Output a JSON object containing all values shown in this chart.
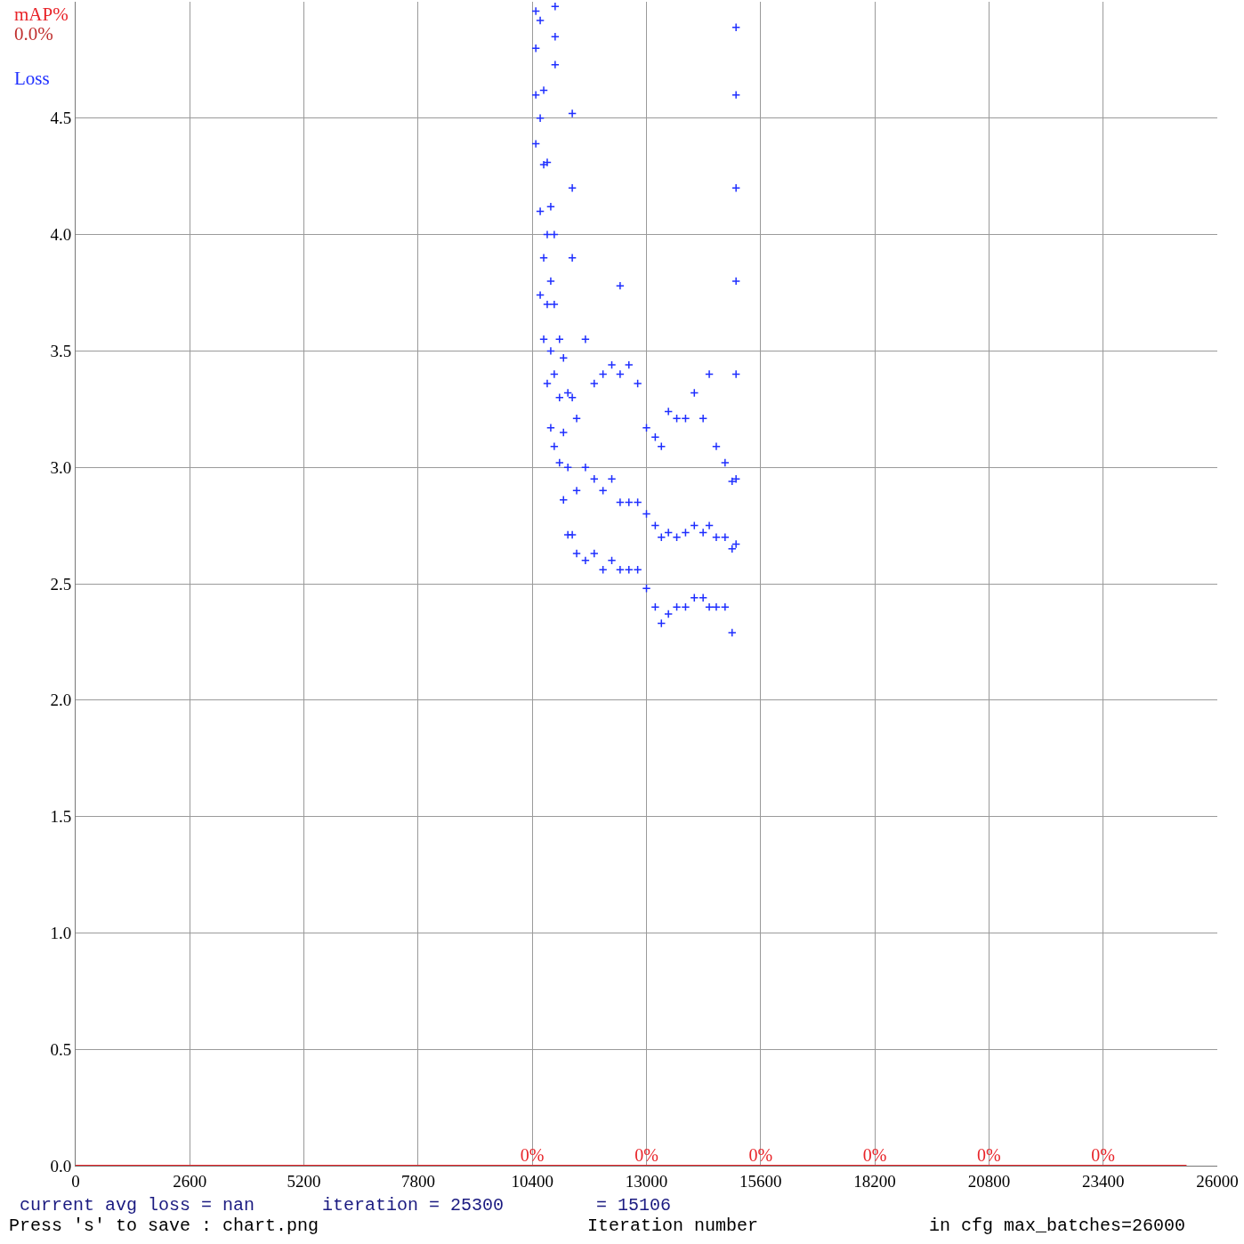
{
  "chart_data": {
    "type": "scatter",
    "xlabel": "Iteration number",
    "xlim": [
      0,
      26000
    ],
    "xticks": [
      0,
      2600,
      5200,
      7800,
      10400,
      13000,
      15600,
      18200,
      20800,
      23400,
      26000
    ],
    "ylim": [
      0,
      5
    ],
    "yticks": [
      {
        "value": 0,
        "label": "0.0"
      },
      {
        "value": 0.5,
        "label": "0.5"
      },
      {
        "value": 1,
        "label": "1.0"
      },
      {
        "value": 1.5,
        "label": "1.5"
      },
      {
        "value": 2,
        "label": "2.0"
      },
      {
        "value": 2.5,
        "label": "2.5"
      },
      {
        "value": 3,
        "label": "3.0"
      },
      {
        "value": 3.5,
        "label": "3.5"
      },
      {
        "value": 4,
        "label": "4.0"
      },
      {
        "value": 4.5,
        "label": "4.5"
      }
    ],
    "grid": true,
    "legend": false,
    "marker": "cross",
    "series": [
      {
        "name": "Loss",
        "color": "#1f2fff",
        "x": [
          10480,
          10480,
          10480,
          10480,
          10580,
          10580,
          10580,
          10580,
          10660,
          10660,
          10660,
          10660,
          10740,
          10740,
          10740,
          10740,
          10820,
          10820,
          10820,
          10820,
          10900,
          10900,
          10900,
          10900,
          10920,
          10920,
          10920,
          11020,
          11020,
          11020,
          11110,
          11110,
          11110,
          11210,
          11210,
          11210,
          11310,
          11310,
          11310,
          11310,
          11310,
          11410,
          11410,
          11410,
          11610,
          11610,
          11610,
          11810,
          11810,
          11810,
          12010,
          12010,
          12010,
          12210,
          12210,
          12210,
          12400,
          12400,
          12400,
          12400,
          12600,
          12600,
          12600,
          12800,
          12800,
          12800,
          13000,
          13000,
          13000,
          13200,
          13200,
          13200,
          13340,
          13340,
          13340,
          13500,
          13500,
          13500,
          13690,
          13690,
          13690,
          13890,
          13890,
          13890,
          14090,
          14090,
          14090,
          14290,
          14290,
          14290,
          14430,
          14430,
          14430,
          14590,
          14590,
          14590,
          14790,
          14790,
          14790,
          14950,
          14950,
          14950,
          15040,
          15040,
          15040,
          15040,
          15040,
          15040,
          15040
        ],
        "values": [
          4.96,
          4.8,
          4.6,
          4.39,
          4.92,
          4.5,
          4.1,
          3.74,
          4.62,
          4.3,
          3.9,
          3.55,
          4.31,
          4.0,
          3.7,
          3.36,
          4.12,
          3.8,
          3.5,
          3.17,
          4.0,
          3.7,
          3.4,
          3.09,
          4.98,
          4.85,
          4.73,
          3.55,
          3.3,
          3.02,
          3.47,
          3.15,
          2.86,
          3.32,
          3.0,
          2.71,
          4.52,
          4.2,
          3.9,
          3.3,
          2.71,
          3.21,
          2.9,
          2.63,
          3.55,
          3.0,
          2.6,
          3.36,
          2.95,
          2.63,
          3.4,
          2.9,
          2.56,
          3.44,
          2.95,
          2.6,
          3.78,
          3.4,
          2.85,
          2.56,
          3.44,
          2.85,
          2.56,
          3.36,
          2.85,
          2.56,
          3.17,
          2.8,
          2.48,
          3.13,
          2.75,
          2.4,
          3.09,
          2.7,
          2.33,
          3.24,
          2.72,
          2.37,
          3.21,
          2.7,
          2.4,
          3.21,
          2.72,
          2.4,
          3.32,
          2.75,
          2.44,
          3.21,
          2.72,
          2.44,
          3.4,
          2.75,
          2.4,
          3.09,
          2.7,
          2.4,
          3.02,
          2.7,
          2.4,
          2.94,
          2.65,
          2.29,
          4.89,
          4.6,
          4.2,
          3.8,
          3.4,
          2.95,
          2.67
        ]
      },
      {
        "name": "mAP%",
        "color": "#e8252a",
        "type": "line",
        "marker": "none",
        "x": [
          0,
          10400,
          13000,
          15600,
          18200,
          20800,
          23400,
          25300
        ],
        "values": [
          0,
          0,
          0,
          0,
          0,
          0,
          0,
          0
        ],
        "value_labels": [
          null,
          "0%",
          "0%",
          "0%",
          "0%",
          "0%",
          "0%",
          null
        ]
      }
    ],
    "annotations": [
      "0.0%",
      "current avg loss = nan",
      "iteration = 25300",
      "= 15106",
      "Press 's' to save : chart.png",
      "in cfg max_batches=26000"
    ]
  }
}
